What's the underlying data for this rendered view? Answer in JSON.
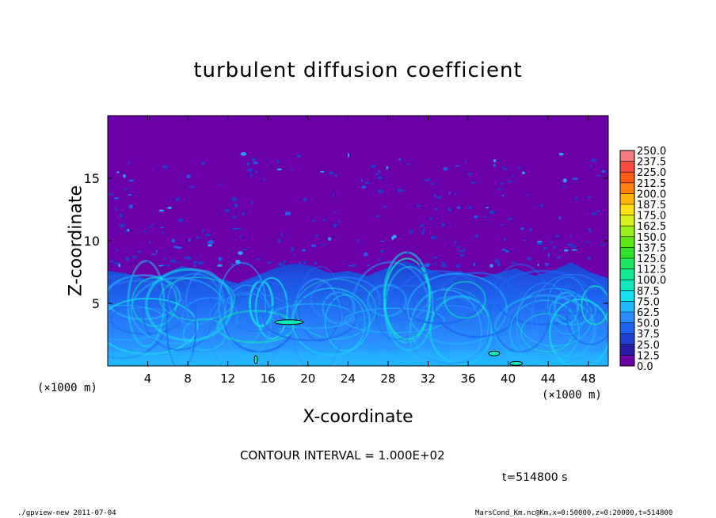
{
  "chart_data": {
    "type": "heatmap",
    "title": "turbulent diffusion coefficient",
    "xlabel": "X-coordinate",
    "ylabel": "Z-coordinate",
    "x_unit": "(×1000 m)",
    "y_unit": "(×1000 m)",
    "xlim": [
      0,
      50
    ],
    "ylim": [
      0,
      20
    ],
    "x_ticks": [
      4,
      8,
      12,
      16,
      20,
      24,
      28,
      32,
      36,
      40,
      44,
      48
    ],
    "y_ticks": [
      5,
      10,
      15
    ],
    "colorbar": {
      "levels": [
        "0.0",
        "12.5",
        "25.0",
        "37.5",
        "50.0",
        "62.5",
        "75.0",
        "87.5",
        "100.0",
        "112.5",
        "125.0",
        "137.5",
        "150.0",
        "162.5",
        "175.0",
        "187.5",
        "200.0",
        "212.5",
        "225.0",
        "237.5",
        "250.0"
      ],
      "colors": [
        "#6a00a8",
        "#2a1aa8",
        "#1f3fd0",
        "#1e64ee",
        "#2a8cff",
        "#23b7ff",
        "#15e0f0",
        "#10e8c0",
        "#12e890",
        "#1ee660",
        "#2ee02a",
        "#5ee81a",
        "#9cf01a",
        "#d8f01c",
        "#ffe012",
        "#ffb40a",
        "#ff8010",
        "#ff5a14",
        "#f84a40",
        "#f07a80"
      ]
    },
    "boundary_layer_top_km": [
      7.6,
      7.4,
      7.0,
      7.3,
      8.0,
      7.6,
      7.0,
      6.6,
      7.2,
      7.8,
      8.2,
      8.0,
      7.4,
      7.6,
      7.2,
      7.8,
      8.4,
      7.9,
      7.4,
      7.6,
      7.0,
      7.4,
      7.8,
      7.2,
      7.6,
      8.3,
      7.5,
      7.0
    ],
    "contour_interval": "CONTOUR INTERVAL = 1.000E+02",
    "time": "t=514800 s"
  },
  "footer": {
    "left": "./gpview-new   2011-07-04",
    "right": "MarsCond_Km.nc@Km,x=0:50000,z=0:20000,t=514800"
  },
  "colors": {
    "background_field": "#6a00a8",
    "frame": "#000000"
  }
}
